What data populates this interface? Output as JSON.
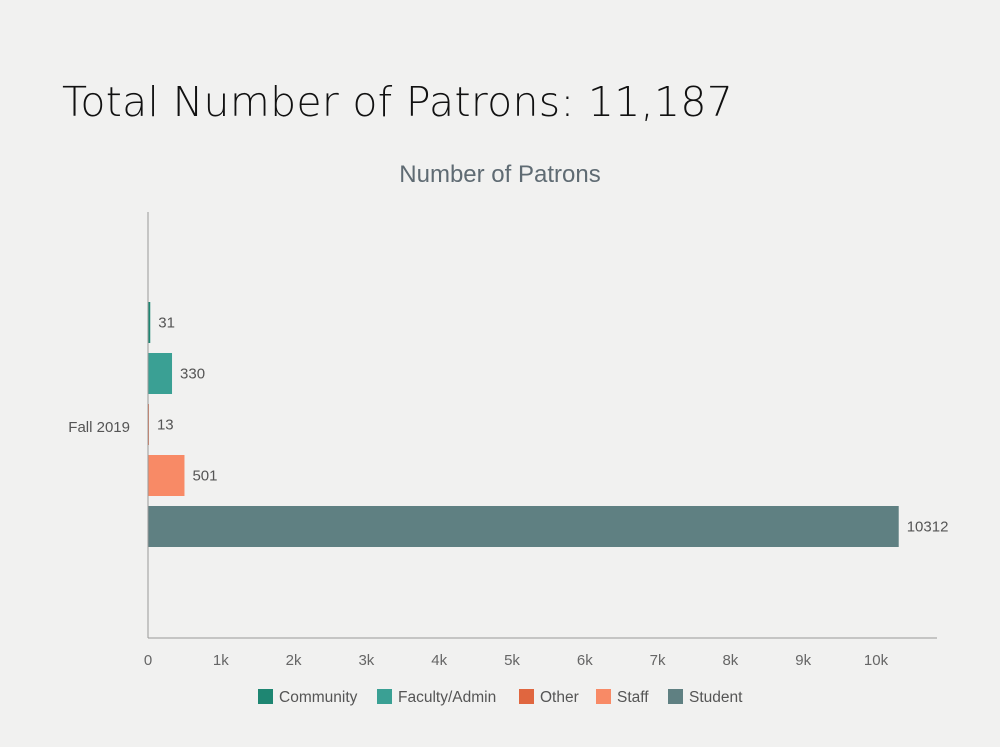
{
  "page": {
    "heading": "Total Number of Patrons: 11,187"
  },
  "chart_data": {
    "type": "bar",
    "orientation": "horizontal",
    "title": "Number of Patrons",
    "categories": [
      "Fall 2019"
    ],
    "series": [
      {
        "name": "Community",
        "values": [
          31
        ],
        "color": "#1e8672"
      },
      {
        "name": "Faculty/Admin",
        "values": [
          330
        ],
        "color": "#3aa094"
      },
      {
        "name": "Other",
        "values": [
          13
        ],
        "color": "#e0663f"
      },
      {
        "name": "Staff",
        "values": [
          501
        ],
        "color": "#f88a66"
      },
      {
        "name": "Student",
        "values": [
          10312
        ],
        "color": "#5f8082"
      }
    ],
    "xlim": [
      0,
      10800
    ],
    "x_ticks": [
      {
        "value": 0,
        "label": "0"
      },
      {
        "value": 1000,
        "label": "1k"
      },
      {
        "value": 2000,
        "label": "2k"
      },
      {
        "value": 3000,
        "label": "3k"
      },
      {
        "value": 4000,
        "label": "4k"
      },
      {
        "value": 5000,
        "label": "5k"
      },
      {
        "value": 6000,
        "label": "6k"
      },
      {
        "value": 7000,
        "label": "7k"
      },
      {
        "value": 8000,
        "label": "8k"
      },
      {
        "value": 9000,
        "label": "9k"
      },
      {
        "value": 10000,
        "label": "10k"
      }
    ],
    "data_labels": true,
    "grid": false,
    "legend_position": "bottom"
  }
}
